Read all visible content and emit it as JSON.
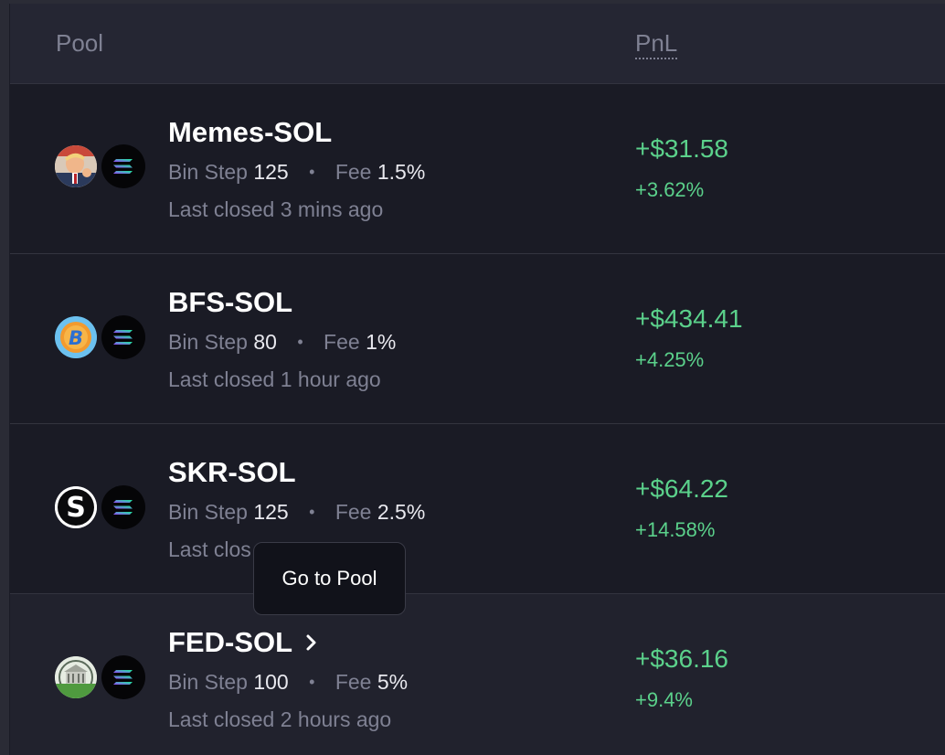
{
  "table": {
    "headers": {
      "pool": "Pool",
      "pnl": "PnL"
    },
    "rows": [
      {
        "pair": "Memes-SOL",
        "bin_step_label": "Bin Step",
        "bin_step": "125",
        "fee_label": "Fee",
        "fee": "1.5%",
        "last_closed": "Last closed 3 mins ago",
        "pnl_usd": "+$31.58",
        "pnl_pct": "+3.62%",
        "token_icon": "memes-token-icon",
        "quote_icon": "solana-icon"
      },
      {
        "pair": "BFS-SOL",
        "bin_step_label": "Bin Step",
        "bin_step": "80",
        "fee_label": "Fee",
        "fee": "1%",
        "last_closed": "Last closed 1 hour ago",
        "pnl_usd": "+$434.41",
        "pnl_pct": "+4.25%",
        "token_icon": "bfs-token-icon",
        "quote_icon": "solana-icon"
      },
      {
        "pair": "SKR-SOL",
        "bin_step_label": "Bin Step",
        "bin_step": "125",
        "fee_label": "Fee",
        "fee": "2.5%",
        "last_closed": "Last clos",
        "pnl_usd": "+$64.22",
        "pnl_pct": "+14.58%",
        "token_icon": "skr-token-icon",
        "quote_icon": "solana-icon"
      },
      {
        "pair": "FED-SOL",
        "bin_step_label": "Bin Step",
        "bin_step": "100",
        "fee_label": "Fee",
        "fee": "5%",
        "last_closed": "Last closed 2 hours ago",
        "pnl_usd": "+$36.16",
        "pnl_pct": "+9.4%",
        "token_icon": "fed-token-icon",
        "quote_icon": "solana-icon"
      }
    ]
  },
  "tooltip": {
    "label": "Go to Pool"
  },
  "colors": {
    "background": "#1a1b25",
    "header_background": "#252633",
    "positive": "#5bd18b",
    "muted_text": "#7f8193",
    "primary_text": "#ffffff"
  }
}
